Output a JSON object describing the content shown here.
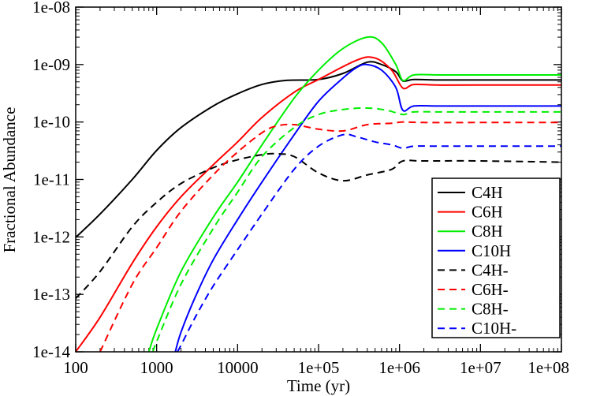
{
  "chart_data": {
    "type": "line",
    "title": "",
    "xlabel": "Time (yr)",
    "ylabel": "Fractional Abundance",
    "xscale": "log",
    "yscale": "log",
    "xlim": [
      100,
      100000000
    ],
    "ylim": [
      1e-14,
      1e-08
    ],
    "x_tick_values": [
      100,
      1000,
      10000,
      100000,
      1000000,
      10000000,
      100000000
    ],
    "x_tick_labels": [
      "100",
      "1000",
      "10000",
      "1e+05",
      "1e+06",
      "1e+07",
      "1e+08"
    ],
    "y_tick_values": [
      1e-14,
      1e-13,
      1e-12,
      1e-11,
      1e-10,
      1e-09,
      1e-08
    ],
    "y_tick_labels": [
      "1e-14",
      "1e-13",
      "1e-12",
      "1e-11",
      "1e-10",
      "1e-09",
      "1e-08"
    ],
    "legend_position": "lower-right",
    "series": [
      {
        "name": "C4H",
        "color": "#000000",
        "style": "solid",
        "points": [
          [
            100,
            9.8e-13
          ],
          [
            200,
            2.5e-12
          ],
          [
            500,
            1e-11
          ],
          [
            1000,
            3.2e-11
          ],
          [
            2000,
            8e-11
          ],
          [
            5000,
            1.9e-10
          ],
          [
            10000,
            3.1e-10
          ],
          [
            20000,
            4.5e-10
          ],
          [
            40000,
            5.3e-10
          ],
          [
            100000,
            5.5e-10
          ],
          [
            200000,
            7e-10
          ],
          [
            400000,
            1.1e-09
          ],
          [
            600000,
            1e-09
          ],
          [
            900000,
            7.5e-10
          ],
          [
            1100000,
            5.2e-10
          ],
          [
            1500000,
            5.5e-10
          ],
          [
            3000000,
            5.4e-10
          ],
          [
            10000000,
            5.4e-10
          ],
          [
            100000000,
            5.4e-10
          ]
        ]
      },
      {
        "name": "C6H",
        "color": "#ff0000",
        "style": "solid",
        "points": [
          [
            100,
            1e-14
          ],
          [
            200,
            4e-14
          ],
          [
            500,
            3.5e-13
          ],
          [
            1000,
            1.5e-12
          ],
          [
            2000,
            5e-12
          ],
          [
            5000,
            1.8e-11
          ],
          [
            10000,
            4.5e-11
          ],
          [
            20000,
            1.2e-10
          ],
          [
            50000,
            3.3e-10
          ],
          [
            100000,
            5.5e-10
          ],
          [
            300000,
            1.2e-09
          ],
          [
            500000,
            1.3e-09
          ],
          [
            800000,
            8e-10
          ],
          [
            1100000,
            3.9e-10
          ],
          [
            1500000,
            4.5e-10
          ],
          [
            3000000,
            4.4e-10
          ],
          [
            10000000,
            4.4e-10
          ],
          [
            100000000,
            4.4e-10
          ]
        ]
      },
      {
        "name": "C8H",
        "color": "#00ee00",
        "style": "solid",
        "points": [
          [
            800,
            1e-14
          ],
          [
            1000,
            2.5e-14
          ],
          [
            2000,
            2.5e-13
          ],
          [
            5000,
            2.2e-12
          ],
          [
            10000,
            9e-12
          ],
          [
            20000,
            4e-11
          ],
          [
            50000,
            2.6e-10
          ],
          [
            100000,
            8e-10
          ],
          [
            200000,
            1.9e-09
          ],
          [
            400000,
            3e-09
          ],
          [
            600000,
            2.4e-09
          ],
          [
            900000,
            1e-09
          ],
          [
            1100000,
            5.3e-10
          ],
          [
            1500000,
            6.6e-10
          ],
          [
            3000000,
            6.6e-10
          ],
          [
            10000000,
            6.6e-10
          ],
          [
            100000000,
            6.6e-10
          ]
        ]
      },
      {
        "name": "C10H",
        "color": "#0000ff",
        "style": "solid",
        "points": [
          [
            1700,
            1e-14
          ],
          [
            2000,
            2.2e-14
          ],
          [
            3000,
            9e-14
          ],
          [
            5000,
            4e-13
          ],
          [
            10000,
            2e-12
          ],
          [
            20000,
            9e-12
          ],
          [
            50000,
            6e-11
          ],
          [
            100000,
            2.3e-10
          ],
          [
            200000,
            5.8e-10
          ],
          [
            300000,
            9e-10
          ],
          [
            400000,
            1e-09
          ],
          [
            600000,
            8e-10
          ],
          [
            900000,
            4e-10
          ],
          [
            1100000,
            1.6e-10
          ],
          [
            1500000,
            1.9e-10
          ],
          [
            3000000,
            1.9e-10
          ],
          [
            10000000,
            1.9e-10
          ],
          [
            100000000,
            1.9e-10
          ]
        ]
      },
      {
        "name": "C4H-",
        "color": "#000000",
        "style": "dashed",
        "points": [
          [
            100,
            8.5e-14
          ],
          [
            200,
            2.5e-13
          ],
          [
            500,
            1.5e-12
          ],
          [
            1000,
            4e-12
          ],
          [
            2000,
            8.5e-12
          ],
          [
            5000,
            1.6e-11
          ],
          [
            10000,
            2.2e-11
          ],
          [
            20000,
            2.7e-11
          ],
          [
            30000,
            2.8e-11
          ],
          [
            50000,
            2.5e-11
          ],
          [
            100000,
            1.3e-11
          ],
          [
            200000,
            9.5e-12
          ],
          [
            400000,
            1.2e-11
          ],
          [
            800000,
            1.5e-11
          ],
          [
            1100000,
            2.1e-11
          ],
          [
            2000000,
            2.1e-11
          ],
          [
            10000000,
            2.1e-11
          ],
          [
            100000000,
            2e-11
          ]
        ]
      },
      {
        "name": "C6H-",
        "color": "#ff0000",
        "style": "dashed",
        "points": [
          [
            200,
            1e-14
          ],
          [
            500,
            1.5e-13
          ],
          [
            1000,
            6.5e-13
          ],
          [
            2000,
            2.8e-12
          ],
          [
            5000,
            1.2e-11
          ],
          [
            10000,
            3e-11
          ],
          [
            20000,
            6.5e-11
          ],
          [
            30000,
            8.5e-11
          ],
          [
            50000,
            9e-11
          ],
          [
            100000,
            7.5e-11
          ],
          [
            200000,
            7e-11
          ],
          [
            400000,
            9e-11
          ],
          [
            800000,
            9.5e-11
          ],
          [
            1100000,
            1e-10
          ],
          [
            2000000,
            9.8e-11
          ],
          [
            10000000,
            9.8e-11
          ],
          [
            100000000,
            9.8e-11
          ]
        ]
      },
      {
        "name": "C8H-",
        "color": "#00ee00",
        "style": "dashed",
        "points": [
          [
            900,
            1e-14
          ],
          [
            1000,
            1.5e-14
          ],
          [
            2000,
            1.5e-13
          ],
          [
            5000,
            1.4e-12
          ],
          [
            10000,
            6e-12
          ],
          [
            20000,
            2.5e-11
          ],
          [
            50000,
            8e-11
          ],
          [
            100000,
            1.35e-10
          ],
          [
            200000,
            1.65e-10
          ],
          [
            400000,
            1.75e-10
          ],
          [
            700000,
            1.6e-10
          ],
          [
            1100000,
            1.35e-10
          ],
          [
            1500000,
            1.5e-10
          ],
          [
            3000000,
            1.5e-10
          ],
          [
            10000000,
            1.5e-10
          ],
          [
            100000000,
            1.5e-10
          ]
        ]
      },
      {
        "name": "C10H-",
        "color": "#0000ff",
        "style": "dashed",
        "points": [
          [
            1800,
            1e-14
          ],
          [
            2000,
            1.3e-14
          ],
          [
            3000,
            4e-14
          ],
          [
            5000,
            1.4e-13
          ],
          [
            10000,
            6e-13
          ],
          [
            20000,
            2.5e-12
          ],
          [
            50000,
            1.5e-11
          ],
          [
            100000,
            3.8e-11
          ],
          [
            200000,
            6e-11
          ],
          [
            300000,
            5.5e-11
          ],
          [
            500000,
            4.5e-11
          ],
          [
            800000,
            4e-11
          ],
          [
            1100000,
            3.5e-11
          ],
          [
            1500000,
            3.8e-11
          ],
          [
            3000000,
            3.8e-11
          ],
          [
            10000000,
            3.8e-11
          ],
          [
            100000000,
            3.8e-11
          ]
        ]
      }
    ]
  }
}
